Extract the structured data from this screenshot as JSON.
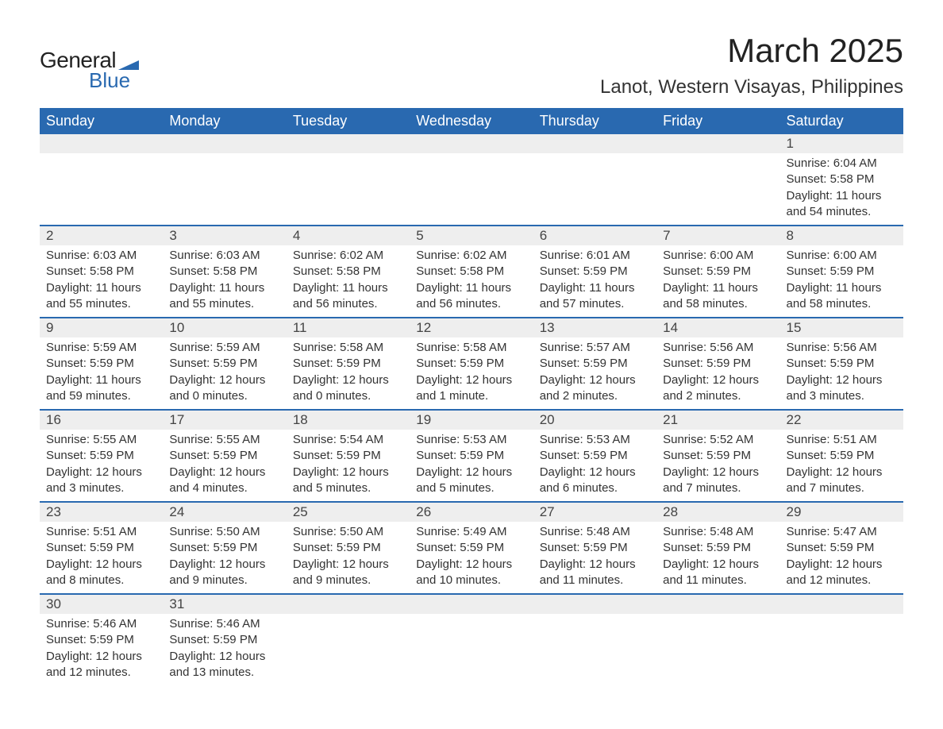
{
  "logo": {
    "general": "General",
    "blue": "Blue",
    "flag_color": "#2969b0"
  },
  "title": "March 2025",
  "location": "Lanot, Western Visayas, Philippines",
  "colors": {
    "header_bg": "#2969b0",
    "header_text": "#ffffff",
    "daynum_bg": "#eeeeee",
    "row_divider": "#2969b0",
    "text": "#333333",
    "background": "#ffffff"
  },
  "typography": {
    "title_fontsize": 42,
    "location_fontsize": 24,
    "dayheader_fontsize": 18,
    "daynum_fontsize": 17,
    "body_fontsize": 15
  },
  "layout": {
    "columns": 7,
    "weeks": 6
  },
  "day_headers": [
    "Sunday",
    "Monday",
    "Tuesday",
    "Wednesday",
    "Thursday",
    "Friday",
    "Saturday"
  ],
  "weeks": [
    [
      null,
      null,
      null,
      null,
      null,
      null,
      {
        "n": "1",
        "sr": "Sunrise: 6:04 AM",
        "ss": "Sunset: 5:58 PM",
        "dl": "Daylight: 11 hours and 54 minutes."
      }
    ],
    [
      {
        "n": "2",
        "sr": "Sunrise: 6:03 AM",
        "ss": "Sunset: 5:58 PM",
        "dl": "Daylight: 11 hours and 55 minutes."
      },
      {
        "n": "3",
        "sr": "Sunrise: 6:03 AM",
        "ss": "Sunset: 5:58 PM",
        "dl": "Daylight: 11 hours and 55 minutes."
      },
      {
        "n": "4",
        "sr": "Sunrise: 6:02 AM",
        "ss": "Sunset: 5:58 PM",
        "dl": "Daylight: 11 hours and 56 minutes."
      },
      {
        "n": "5",
        "sr": "Sunrise: 6:02 AM",
        "ss": "Sunset: 5:58 PM",
        "dl": "Daylight: 11 hours and 56 minutes."
      },
      {
        "n": "6",
        "sr": "Sunrise: 6:01 AM",
        "ss": "Sunset: 5:59 PM",
        "dl": "Daylight: 11 hours and 57 minutes."
      },
      {
        "n": "7",
        "sr": "Sunrise: 6:00 AM",
        "ss": "Sunset: 5:59 PM",
        "dl": "Daylight: 11 hours and 58 minutes."
      },
      {
        "n": "8",
        "sr": "Sunrise: 6:00 AM",
        "ss": "Sunset: 5:59 PM",
        "dl": "Daylight: 11 hours and 58 minutes."
      }
    ],
    [
      {
        "n": "9",
        "sr": "Sunrise: 5:59 AM",
        "ss": "Sunset: 5:59 PM",
        "dl": "Daylight: 11 hours and 59 minutes."
      },
      {
        "n": "10",
        "sr": "Sunrise: 5:59 AM",
        "ss": "Sunset: 5:59 PM",
        "dl": "Daylight: 12 hours and 0 minutes."
      },
      {
        "n": "11",
        "sr": "Sunrise: 5:58 AM",
        "ss": "Sunset: 5:59 PM",
        "dl": "Daylight: 12 hours and 0 minutes."
      },
      {
        "n": "12",
        "sr": "Sunrise: 5:58 AM",
        "ss": "Sunset: 5:59 PM",
        "dl": "Daylight: 12 hours and 1 minute."
      },
      {
        "n": "13",
        "sr": "Sunrise: 5:57 AM",
        "ss": "Sunset: 5:59 PM",
        "dl": "Daylight: 12 hours and 2 minutes."
      },
      {
        "n": "14",
        "sr": "Sunrise: 5:56 AM",
        "ss": "Sunset: 5:59 PM",
        "dl": "Daylight: 12 hours and 2 minutes."
      },
      {
        "n": "15",
        "sr": "Sunrise: 5:56 AM",
        "ss": "Sunset: 5:59 PM",
        "dl": "Daylight: 12 hours and 3 minutes."
      }
    ],
    [
      {
        "n": "16",
        "sr": "Sunrise: 5:55 AM",
        "ss": "Sunset: 5:59 PM",
        "dl": "Daylight: 12 hours and 3 minutes."
      },
      {
        "n": "17",
        "sr": "Sunrise: 5:55 AM",
        "ss": "Sunset: 5:59 PM",
        "dl": "Daylight: 12 hours and 4 minutes."
      },
      {
        "n": "18",
        "sr": "Sunrise: 5:54 AM",
        "ss": "Sunset: 5:59 PM",
        "dl": "Daylight: 12 hours and 5 minutes."
      },
      {
        "n": "19",
        "sr": "Sunrise: 5:53 AM",
        "ss": "Sunset: 5:59 PM",
        "dl": "Daylight: 12 hours and 5 minutes."
      },
      {
        "n": "20",
        "sr": "Sunrise: 5:53 AM",
        "ss": "Sunset: 5:59 PM",
        "dl": "Daylight: 12 hours and 6 minutes."
      },
      {
        "n": "21",
        "sr": "Sunrise: 5:52 AM",
        "ss": "Sunset: 5:59 PM",
        "dl": "Daylight: 12 hours and 7 minutes."
      },
      {
        "n": "22",
        "sr": "Sunrise: 5:51 AM",
        "ss": "Sunset: 5:59 PM",
        "dl": "Daylight: 12 hours and 7 minutes."
      }
    ],
    [
      {
        "n": "23",
        "sr": "Sunrise: 5:51 AM",
        "ss": "Sunset: 5:59 PM",
        "dl": "Daylight: 12 hours and 8 minutes."
      },
      {
        "n": "24",
        "sr": "Sunrise: 5:50 AM",
        "ss": "Sunset: 5:59 PM",
        "dl": "Daylight: 12 hours and 9 minutes."
      },
      {
        "n": "25",
        "sr": "Sunrise: 5:50 AM",
        "ss": "Sunset: 5:59 PM",
        "dl": "Daylight: 12 hours and 9 minutes."
      },
      {
        "n": "26",
        "sr": "Sunrise: 5:49 AM",
        "ss": "Sunset: 5:59 PM",
        "dl": "Daylight: 12 hours and 10 minutes."
      },
      {
        "n": "27",
        "sr": "Sunrise: 5:48 AM",
        "ss": "Sunset: 5:59 PM",
        "dl": "Daylight: 12 hours and 11 minutes."
      },
      {
        "n": "28",
        "sr": "Sunrise: 5:48 AM",
        "ss": "Sunset: 5:59 PM",
        "dl": "Daylight: 12 hours and 11 minutes."
      },
      {
        "n": "29",
        "sr": "Sunrise: 5:47 AM",
        "ss": "Sunset: 5:59 PM",
        "dl": "Daylight: 12 hours and 12 minutes."
      }
    ],
    [
      {
        "n": "30",
        "sr": "Sunrise: 5:46 AM",
        "ss": "Sunset: 5:59 PM",
        "dl": "Daylight: 12 hours and 12 minutes."
      },
      {
        "n": "31",
        "sr": "Sunrise: 5:46 AM",
        "ss": "Sunset: 5:59 PM",
        "dl": "Daylight: 12 hours and 13 minutes."
      },
      null,
      null,
      null,
      null,
      null
    ]
  ]
}
